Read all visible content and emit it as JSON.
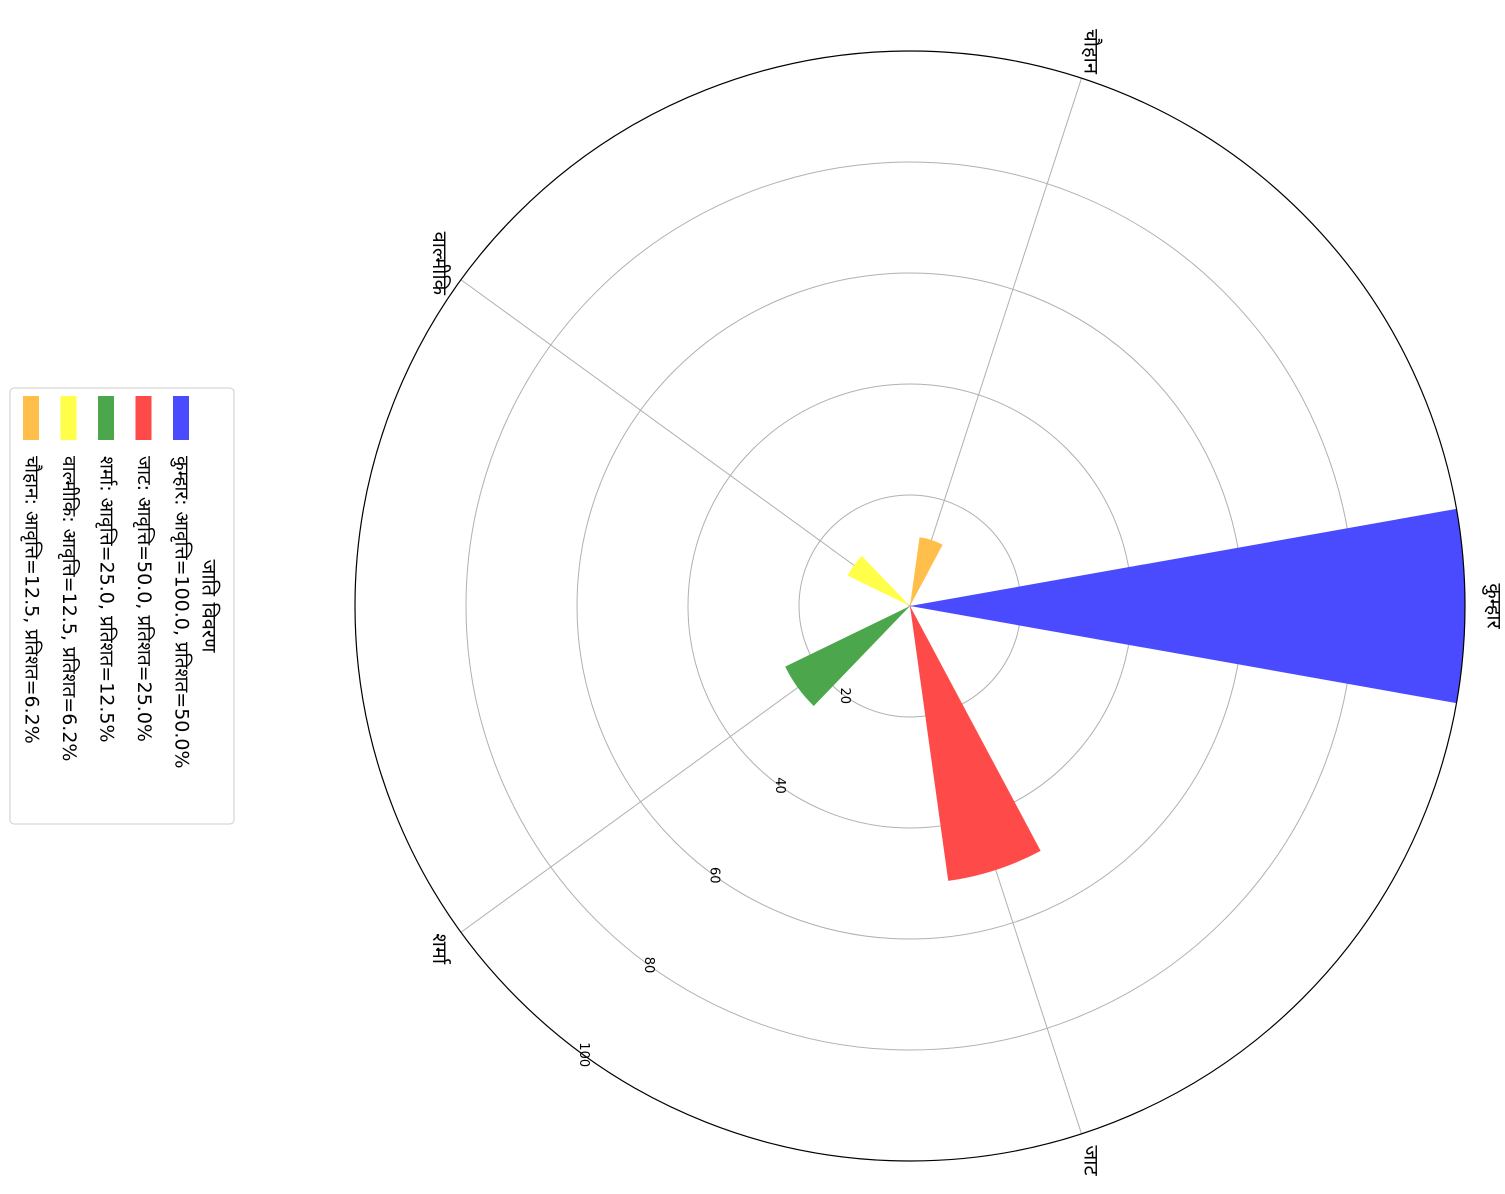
{
  "chart_data": {
    "type": "bar",
    "subtype": "polar",
    "categories": [
      "कुम्हार",
      "जाट",
      "शर्मा",
      "वाल्मीकि",
      "चौहान"
    ],
    "values": [
      100.0,
      50.0,
      25.0,
      12.5,
      12.5
    ],
    "percentages": [
      50.0,
      25.0,
      12.5,
      6.2,
      6.2
    ],
    "colors": [
      "#4a4aff",
      "#ff4a4a",
      "#4ca64c",
      "#ffff4a",
      "#ffbf4a"
    ],
    "radial_ticks": [
      "20",
      "40",
      "60",
      "80",
      "100"
    ],
    "rmax": 100,
    "grid": true,
    "legend": {
      "title": "जाति विवरण",
      "position": "left",
      "entries": [
        {
          "label": "कुम्हार: आवृत्ति=100.0, प्रतिशत=50.0%",
          "color": "#4a4aff"
        },
        {
          "label": "जाट: आवृत्ति=50.0, प्रतिशत=25.0%",
          "color": "#ff4a4a"
        },
        {
          "label": "शर्मा: आवृत्ति=25.0, प्रतिशत=12.5%",
          "color": "#4ca64c"
        },
        {
          "label": "वाल्मीकि: आवृत्ति=12.5, प्रतिशत=6.2%",
          "color": "#ffff4a"
        },
        {
          "label": "चौहान: आवृत्ति=12.5, प्रतिशत=6.2%",
          "color": "#ffbf4a"
        }
      ]
    }
  }
}
